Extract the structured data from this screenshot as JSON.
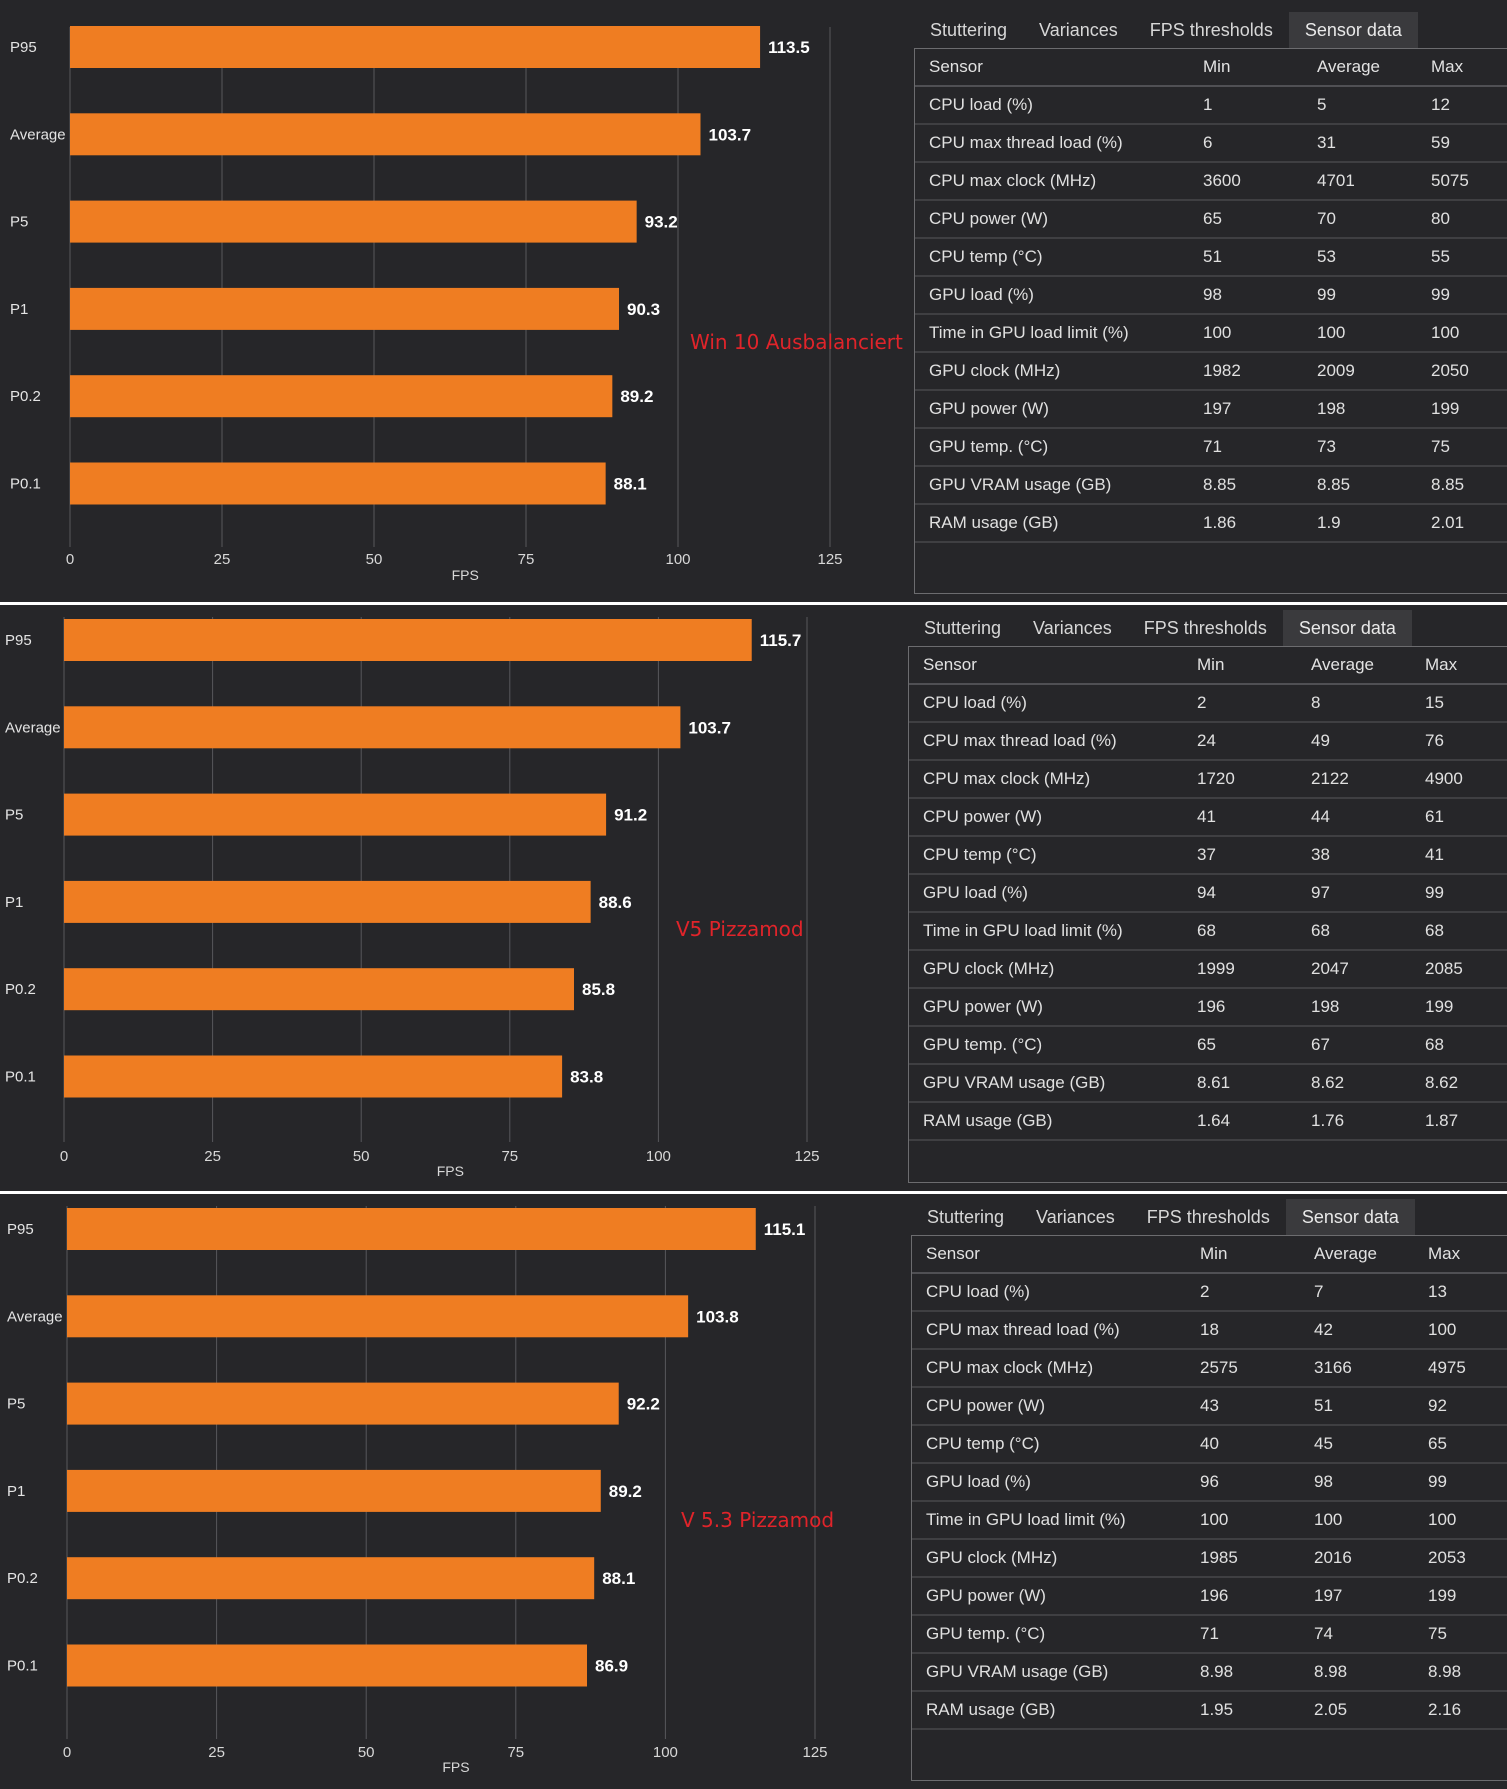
{
  "colors": {
    "bar": "#ef7d22",
    "background": "#262629",
    "annotation": "#e0242a",
    "grid": "#58585c"
  },
  "tabs": [
    "Stuttering",
    "Variances",
    "FPS thresholds",
    "Sensor data"
  ],
  "active_tab": "Sensor data",
  "table_headers": [
    "Sensor",
    "Min",
    "Average",
    "Max"
  ],
  "panels": [
    {
      "annotation": "Win 10 Ausbalanciert",
      "sensor_rows": [
        [
          "CPU load (%)",
          "1",
          "5",
          "12"
        ],
        [
          "CPU max thread load (%)",
          "6",
          "31",
          "59"
        ],
        [
          "CPU max clock (MHz)",
          "3600",
          "4701",
          "5075"
        ],
        [
          "CPU power (W)",
          "65",
          "70",
          "80"
        ],
        [
          "CPU temp (°C)",
          "51",
          "53",
          "55"
        ],
        [
          "GPU load (%)",
          "98",
          "99",
          "99"
        ],
        [
          "Time in GPU load limit (%)",
          "100",
          "100",
          "100"
        ],
        [
          "GPU clock (MHz)",
          "1982",
          "2009",
          "2050"
        ],
        [
          "GPU power (W)",
          "197",
          "198",
          "199"
        ],
        [
          "GPU temp. (°C)",
          "71",
          "73",
          "75"
        ],
        [
          "GPU VRAM usage (GB)",
          "8.85",
          "8.85",
          "8.85"
        ],
        [
          "RAM usage (GB)",
          "1.86",
          "1.9",
          "2.01"
        ]
      ]
    },
    {
      "annotation": "V5 Pizzamod",
      "sensor_rows": [
        [
          "CPU load (%)",
          "2",
          "8",
          "15"
        ],
        [
          "CPU max thread load (%)",
          "24",
          "49",
          "76"
        ],
        [
          "CPU max clock (MHz)",
          "1720",
          "2122",
          "4900"
        ],
        [
          "CPU power (W)",
          "41",
          "44",
          "61"
        ],
        [
          "CPU temp (°C)",
          "37",
          "38",
          "41"
        ],
        [
          "GPU load (%)",
          "94",
          "97",
          "99"
        ],
        [
          "Time in GPU load limit (%)",
          "68",
          "68",
          "68"
        ],
        [
          "GPU clock (MHz)",
          "1999",
          "2047",
          "2085"
        ],
        [
          "GPU power (W)",
          "196",
          "198",
          "199"
        ],
        [
          "GPU temp. (°C)",
          "65",
          "67",
          "68"
        ],
        [
          "GPU VRAM usage (GB)",
          "8.61",
          "8.62",
          "8.62"
        ],
        [
          "RAM usage (GB)",
          "1.64",
          "1.76",
          "1.87"
        ]
      ]
    },
    {
      "annotation": "V 5.3 Pizzamod",
      "sensor_rows": [
        [
          "CPU load (%)",
          "2",
          "7",
          "13"
        ],
        [
          "CPU max thread load (%)",
          "18",
          "42",
          "100"
        ],
        [
          "CPU max clock (MHz)",
          "2575",
          "3166",
          "4975"
        ],
        [
          "CPU power (W)",
          "43",
          "51",
          "92"
        ],
        [
          "CPU temp (°C)",
          "40",
          "45",
          "65"
        ],
        [
          "GPU load (%)",
          "96",
          "98",
          "99"
        ],
        [
          "Time in GPU load limit (%)",
          "100",
          "100",
          "100"
        ],
        [
          "GPU clock (MHz)",
          "1985",
          "2016",
          "2053"
        ],
        [
          "GPU power (W)",
          "196",
          "197",
          "199"
        ],
        [
          "GPU temp. (°C)",
          "71",
          "74",
          "75"
        ],
        [
          "GPU VRAM usage (GB)",
          "8.98",
          "8.98",
          "8.98"
        ],
        [
          "RAM usage (GB)",
          "1.95",
          "2.05",
          "2.16"
        ]
      ]
    }
  ],
  "chart_data": [
    {
      "type": "bar",
      "orientation": "horizontal",
      "xlabel": "FPS",
      "xlim": [
        0,
        125
      ],
      "xticks": [
        0,
        25,
        50,
        75,
        100,
        125
      ],
      "categories": [
        "P95",
        "Average",
        "P5",
        "P1",
        "P0.2",
        "P0.1"
      ],
      "values": [
        113.5,
        103.7,
        93.2,
        90.3,
        89.2,
        88.1
      ],
      "value_labels": [
        "113.5",
        "103.7",
        "93.2",
        "90.3",
        "89.2",
        "88.1"
      ]
    },
    {
      "type": "bar",
      "orientation": "horizontal",
      "xlabel": "FPS",
      "xlim": [
        0,
        125
      ],
      "xticks": [
        0,
        25,
        50,
        75,
        100,
        125
      ],
      "categories": [
        "P95",
        "Average",
        "P5",
        "P1",
        "P0.2",
        "P0.1"
      ],
      "values": [
        115.7,
        103.7,
        91.2,
        88.6,
        85.8,
        83.8
      ],
      "value_labels": [
        "115.7",
        "103.7",
        "91.2",
        "88.6",
        "85.8",
        "83.8"
      ]
    },
    {
      "type": "bar",
      "orientation": "horizontal",
      "xlabel": "FPS",
      "xlim": [
        0,
        125
      ],
      "xticks": [
        0,
        25,
        50,
        75,
        100,
        125
      ],
      "categories": [
        "P95",
        "Average",
        "P5",
        "P1",
        "P0.2",
        "P0.1"
      ],
      "values": [
        115.1,
        103.8,
        92.2,
        89.2,
        88.1,
        86.9
      ],
      "value_labels": [
        "115.1",
        "103.8",
        "92.2",
        "89.2",
        "88.1",
        "86.9"
      ]
    }
  ]
}
